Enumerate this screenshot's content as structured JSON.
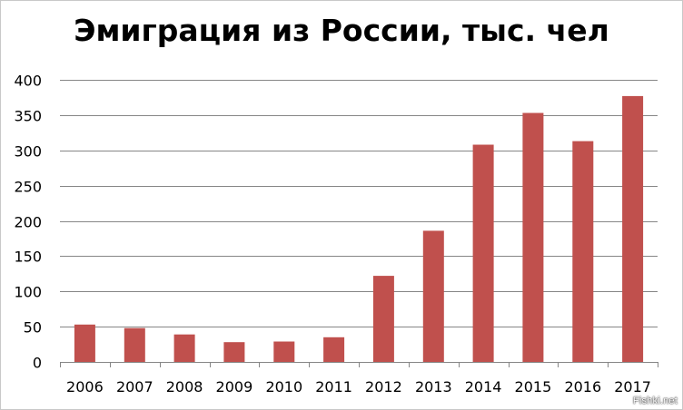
{
  "chart_data": {
    "type": "bar",
    "title": "Эмиграция из России, тыс. чел",
    "xlabel": "",
    "ylabel": "",
    "categories": [
      "2006",
      "2007",
      "2008",
      "2009",
      "2010",
      "2011",
      "2012",
      "2013",
      "2014",
      "2015",
      "2016",
      "2017"
    ],
    "values": [
      53,
      48,
      39,
      28,
      29,
      35,
      122,
      186,
      308,
      353,
      313,
      377
    ],
    "ylim": [
      0,
      400
    ],
    "yticks": [
      0,
      50,
      100,
      150,
      200,
      250,
      300,
      350,
      400
    ],
    "grid": true,
    "legend": "none",
    "bar_color": "#c0504d",
    "grid_color": "#868686"
  },
  "watermark": "Fishki.net"
}
